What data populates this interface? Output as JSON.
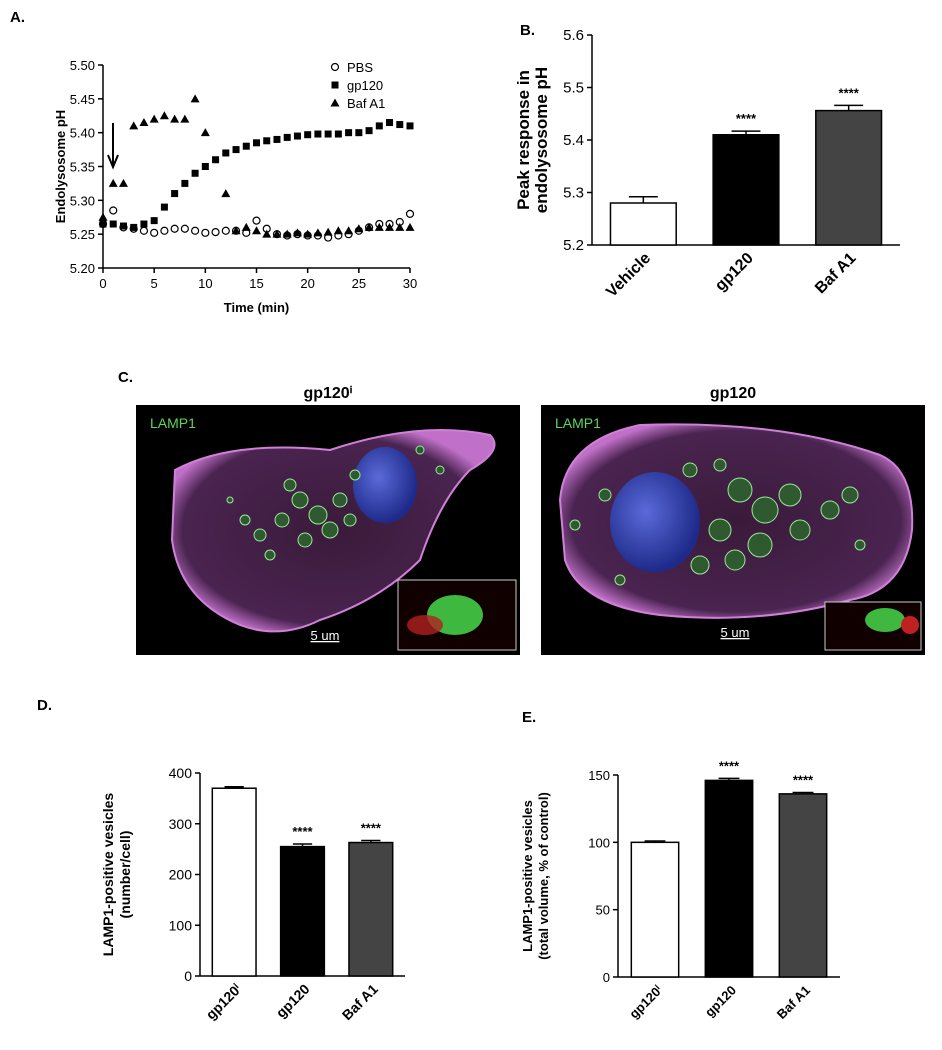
{
  "chart_data": [
    {
      "type": "scatter",
      "label": "A.",
      "xlabel": "Time (min)",
      "ylabel": [
        "Endolysosome pH"
      ],
      "x": [
        0,
        1,
        2,
        3,
        4,
        5,
        6,
        7,
        8,
        9,
        10,
        11,
        12,
        13,
        14,
        15,
        16,
        17,
        18,
        19,
        20,
        21,
        22,
        23,
        24,
        25,
        26,
        27,
        28,
        29,
        30
      ],
      "series": [
        {
          "name": "PBS",
          "color": "#000",
          "marker": "circle",
          "values": [
            5.265,
            5.285,
            5.26,
            5.258,
            5.255,
            5.252,
            5.255,
            5.258,
            5.258,
            5.255,
            5.252,
            5.253,
            5.255,
            5.255,
            5.252,
            5.27,
            5.258,
            5.25,
            5.248,
            5.25,
            5.248,
            5.248,
            5.245,
            5.248,
            5.25,
            5.255,
            5.26,
            5.265,
            5.265,
            5.268,
            5.28
          ]
        },
        {
          "name": "gp120",
          "color": "#000",
          "marker": "square",
          "values": [
            5.265,
            5.265,
            5.262,
            5.26,
            5.265,
            5.27,
            5.29,
            5.31,
            5.325,
            5.34,
            5.35,
            5.36,
            5.37,
            5.375,
            5.38,
            5.385,
            5.388,
            5.39,
            5.393,
            5.395,
            5.397,
            5.398,
            5.398,
            5.398,
            5.4,
            5.4,
            5.403,
            5.41,
            5.415,
            5.412,
            5.41
          ]
        },
        {
          "name": "Baf A1",
          "color": "#000",
          "marker": "triangle",
          "values": [
            5.275,
            5.325,
            5.325,
            5.41,
            5.415,
            5.42,
            5.425,
            5.42,
            5.42,
            5.45,
            5.4,
            null,
            5.31,
            5.255,
            5.26,
            5.255,
            5.25,
            5.25,
            5.25,
            5.252,
            5.25,
            5.252,
            5.253,
            5.255,
            5.255,
            5.258,
            5.26,
            5.26,
            5.26,
            5.26,
            5.26
          ]
        }
      ],
      "xlim": [
        0,
        30
      ],
      "xticks": [
        0,
        5,
        10,
        15,
        20,
        25,
        30
      ],
      "ylim": [
        5.2,
        5.5
      ],
      "yticks": [
        {
          "value": 5.2,
          "label": "5.20"
        },
        {
          "value": 5.25,
          "label": "5.25"
        },
        {
          "value": 5.3,
          "label": "5.30"
        },
        {
          "value": 5.35,
          "label": "5.35"
        },
        {
          "value": 5.4,
          "label": "5.40"
        },
        {
          "value": 5.45,
          "label": "5.45"
        },
        {
          "value": 5.5,
          "label": "5.50"
        }
      ],
      "legend": "top-right"
    },
    {
      "type": "bar",
      "label": "B.",
      "ylabel": [
        "Peak response in",
        "endolysosome pH"
      ],
      "categories": [
        "Vehicle",
        "gp120",
        "Baf A1"
      ],
      "values": [
        5.28,
        5.41,
        5.456
      ],
      "errors": [
        0.012,
        0.007,
        0.01
      ],
      "significance": [
        null,
        "****",
        "****"
      ],
      "colors": [
        "#fff",
        "#000",
        "#444"
      ],
      "ylim": [
        5.2,
        5.6
      ],
      "yticks": [
        5.2,
        5.3,
        5.4,
        5.5,
        5.6
      ]
    },
    {
      "type": "bar",
      "label": "D.",
      "ylabel": [
        "LAMP1-positive vesicles",
        "(number/cell)"
      ],
      "categories": [
        "gp120ⁱ",
        "gp120",
        "Baf A1"
      ],
      "values": [
        370,
        255,
        263
      ],
      "errors": [
        3,
        5,
        4
      ],
      "significance": [
        null,
        "****",
        "****"
      ],
      "colors": [
        "#fff",
        "#000",
        "#444"
      ],
      "ylim": [
        0,
        400
      ],
      "yticks": [
        0,
        100,
        200,
        300,
        400
      ]
    },
    {
      "type": "bar",
      "label": "E.",
      "ylabel": [
        "LAMP1-positive vesicles",
        "(total volume, % of control)"
      ],
      "categories": [
        "gp120ⁱ",
        "gp120",
        "Baf A1"
      ],
      "values": [
        100,
        146,
        136
      ],
      "errors": [
        1,
        1.5,
        1
      ],
      "significance": [
        null,
        "****",
        "****"
      ],
      "colors": [
        "#fff",
        "#000",
        "#444"
      ],
      "ylim": [
        0,
        150
      ],
      "yticks": [
        0,
        50,
        100,
        150
      ]
    }
  ],
  "panel_c": {
    "label": "C.",
    "images": [
      {
        "title": "gp120ⁱ",
        "stain": "LAMP1",
        "scale": "5 um"
      },
      {
        "title": "gp120",
        "stain": "LAMP1",
        "scale": "5 um"
      }
    ]
  }
}
